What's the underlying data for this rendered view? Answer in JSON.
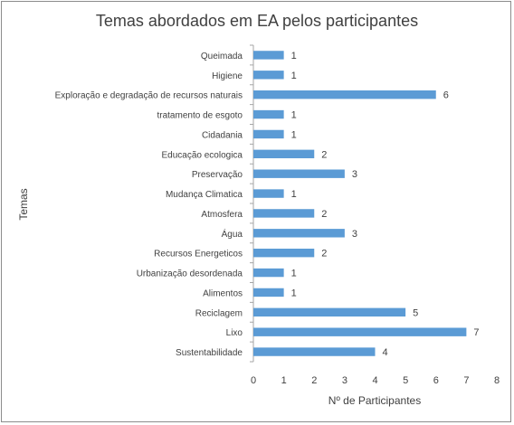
{
  "chart_data": {
    "type": "bar",
    "orientation": "horizontal",
    "title": "Temas abordados em EA pelos participantes",
    "xlabel": "Nº de Participantes",
    "ylabel": "Temas",
    "xlim": [
      0,
      8
    ],
    "xticks": [
      "0",
      "1",
      "2",
      "3",
      "4",
      "5",
      "6",
      "7",
      "8"
    ],
    "grid": false,
    "bar_color": "#5b9bd5",
    "data_labels": true,
    "categories": [
      "Queimada",
      "Higiene",
      "Exploração e degradação de recursos naturais",
      "tratamento de esgoto",
      "Cidadania",
      "Educação ecologica",
      "Preservação",
      "Mudança Climatica",
      "Atmosfera",
      "Água",
      "Recursos Energeticos",
      "Urbanização desordenada",
      "Alimentos",
      "Reciclagem",
      "Lixo",
      "Sustentabilidade"
    ],
    "values": [
      1,
      1,
      6,
      1,
      1,
      2,
      3,
      1,
      2,
      3,
      2,
      1,
      1,
      5,
      7,
      4
    ]
  }
}
